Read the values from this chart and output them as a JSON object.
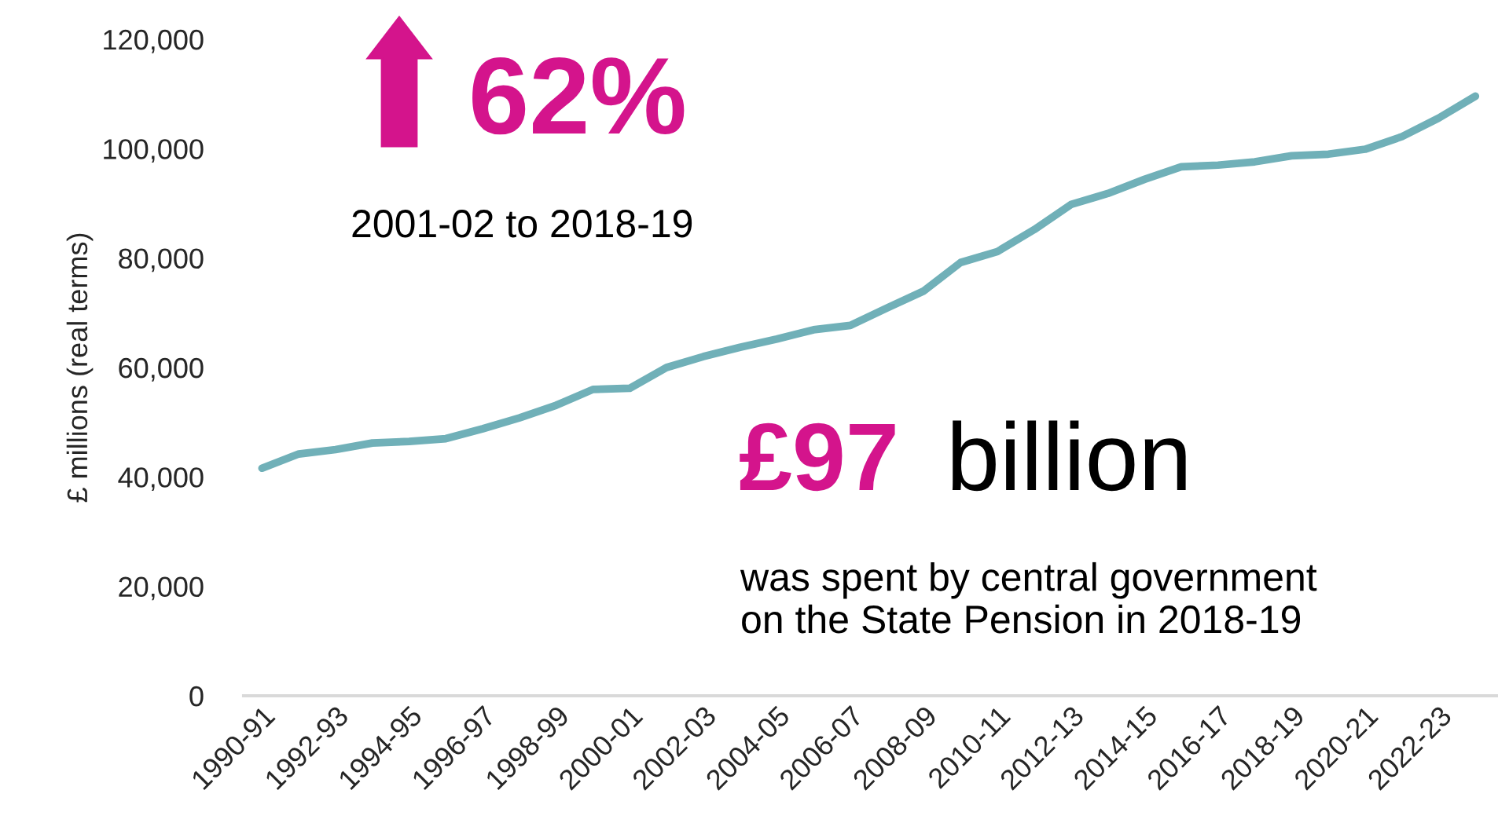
{
  "chart_data": {
    "type": "line",
    "ylabel": "£ millions (real terms)",
    "categories": [
      "1990-91",
      null,
      "1992-93",
      null,
      "1994-95",
      null,
      "1996-97",
      null,
      "1998-99",
      null,
      "2000-01",
      null,
      "2002-03",
      null,
      "2004-05",
      null,
      "2006-07",
      null,
      "2008-09",
      null,
      "2010-11",
      null,
      "2012-13",
      null,
      "2014-15",
      null,
      "2016-17",
      null,
      "2018-19",
      null,
      "2020-21",
      null,
      "2022-23",
      null
    ],
    "series": [
      {
        "color": "#70b0b8",
        "values": [
          41600,
          44200,
          45000,
          46200,
          46500,
          47000,
          48800,
          50800,
          53100,
          56000,
          56200,
          60000,
          62000,
          63700,
          65200,
          66900,
          67700,
          70900,
          74000,
          79200,
          81200,
          85200,
          89800,
          91800,
          94400,
          96700,
          97000,
          97600,
          98700,
          99000,
          99900,
          102200,
          105600,
          109600
        ]
      }
    ],
    "ylim": [
      0,
      120000
    ],
    "yticks": [
      {
        "value": 0,
        "label": "0"
      },
      {
        "value": 20000,
        "label": "20,000"
      },
      {
        "value": 40000,
        "label": "40,000"
      },
      {
        "value": 60000,
        "label": "60,000"
      },
      {
        "value": 80000,
        "label": "80,000"
      },
      {
        "value": 100000,
        "label": "100,000"
      },
      {
        "value": 120000,
        "label": "120,000"
      }
    ],
    "grid": false,
    "marker": "none",
    "line_style": "solid",
    "annotations": [
      "62%",
      "2001-02 to 2018-19",
      "£97",
      "billion",
      "was spent by central government\non the State Pension in 2018-19"
    ]
  }
}
